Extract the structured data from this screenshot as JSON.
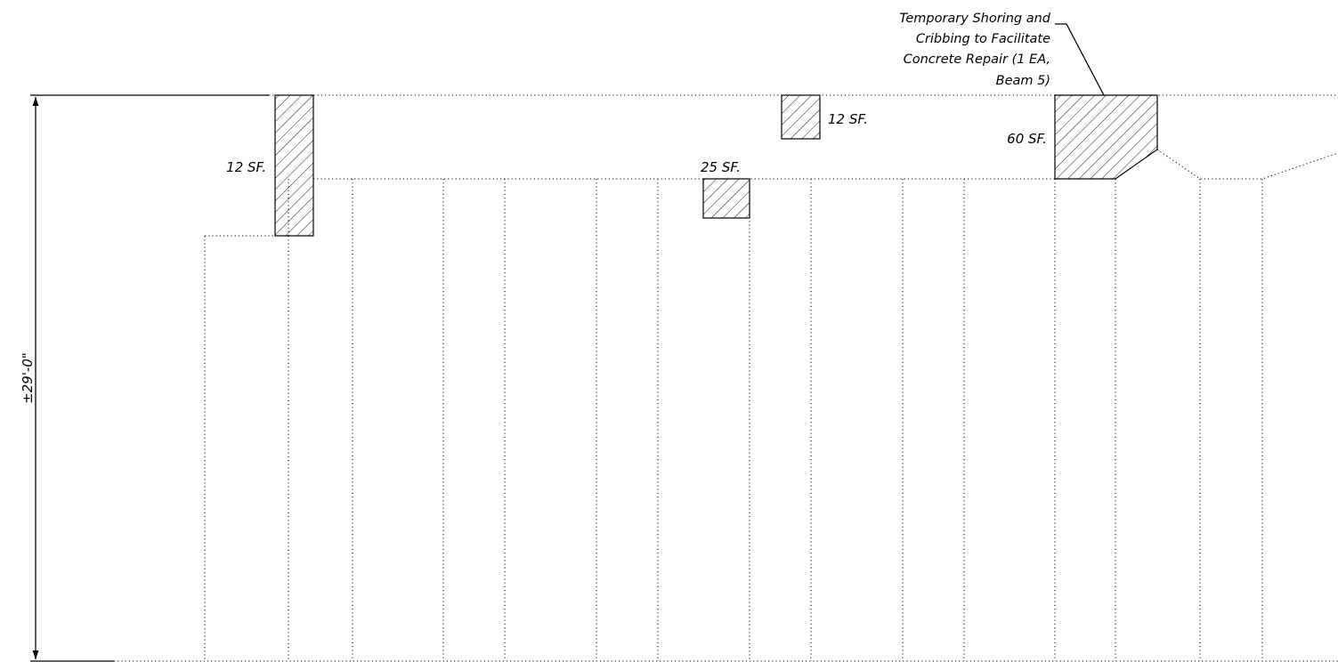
{
  "dimension": {
    "label": "±29'-0\""
  },
  "repair_areas": [
    {
      "id": "left-column",
      "area_label": "12 SF."
    },
    {
      "id": "top-middle",
      "area_label": "12 SF."
    },
    {
      "id": "middle",
      "area_label": "25 SF."
    },
    {
      "id": "beam-5",
      "area_label": "60 SF."
    }
  ],
  "callout": {
    "lines": [
      "Temporary Shoring and",
      "Cribbing to Facilitate",
      "Concrete Repair (1 EA,",
      "Beam 5)"
    ]
  },
  "colors": {
    "line": "#000000",
    "background": "#ffffff"
  }
}
